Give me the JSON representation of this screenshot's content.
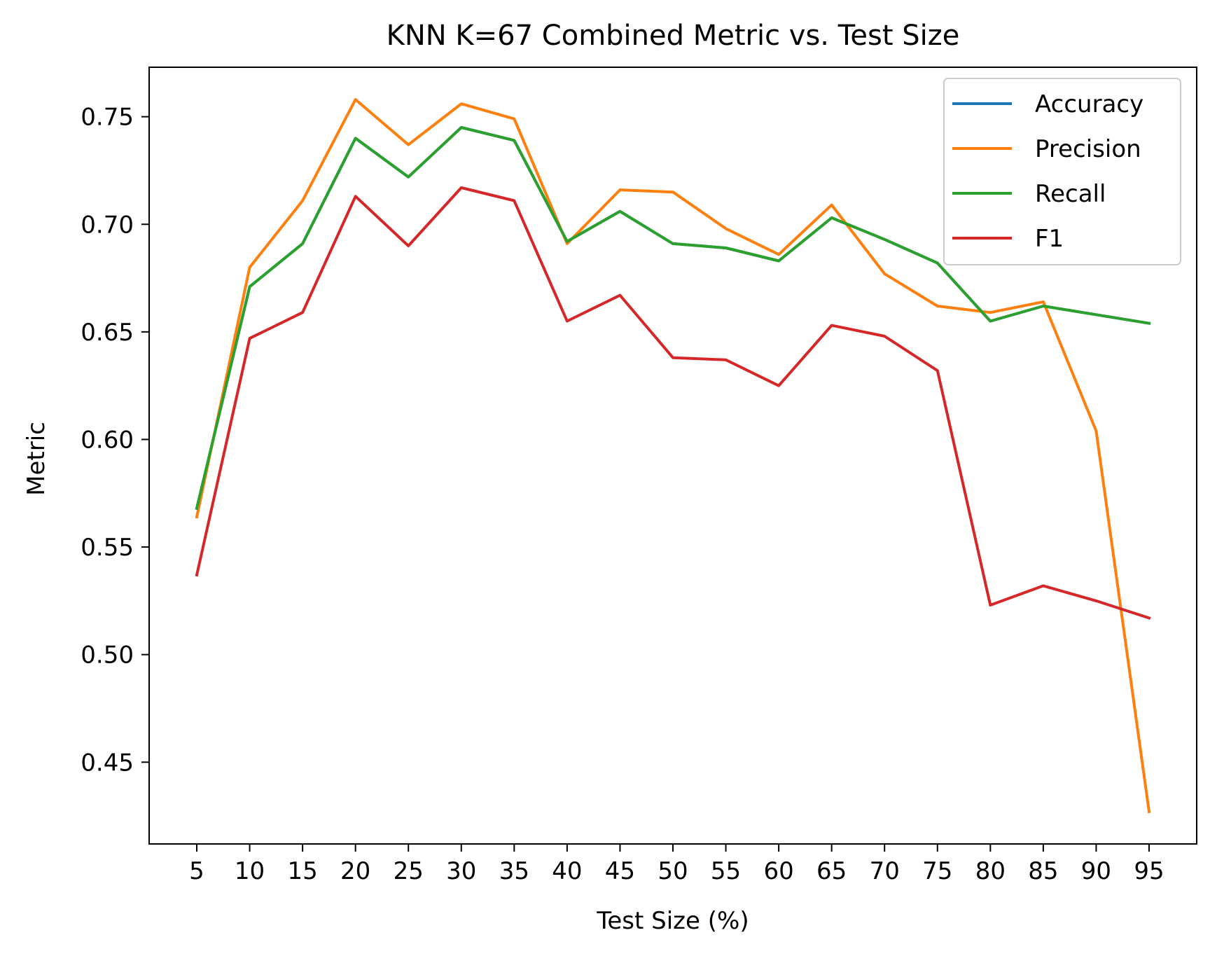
{
  "chart_data": {
    "type": "line",
    "title": "KNN K=67  Combined Metric vs. Test Size",
    "xlabel": "Test Size (%)",
    "ylabel": "Metric",
    "x": [
      5,
      10,
      15,
      20,
      25,
      30,
      35,
      40,
      45,
      50,
      55,
      60,
      65,
      70,
      75,
      80,
      85,
      90,
      95
    ],
    "x_tick_labels": [
      "5",
      "10",
      "15",
      "20",
      "25",
      "30",
      "35",
      "40",
      "45",
      "50",
      "55",
      "60",
      "65",
      "70",
      "75",
      "80",
      "85",
      "90",
      "95"
    ],
    "y_ticks": [
      0.45,
      0.5,
      0.55,
      0.6,
      0.65,
      0.7,
      0.75
    ],
    "y_tick_labels": [
      "0.45",
      "0.50",
      "0.55",
      "0.60",
      "0.65",
      "0.70",
      "0.75"
    ],
    "xlim": [
      0.5,
      99.5
    ],
    "ylim": [
      0.412,
      0.773
    ],
    "grid": false,
    "legend_position": "top-right",
    "series": [
      {
        "name": "Accuracy",
        "color": "#1f77b4",
        "values": [
          0.568,
          0.671,
          0.691,
          0.74,
          0.722,
          0.745,
          0.739,
          0.692,
          0.706,
          0.691,
          0.689,
          0.683,
          0.703,
          0.693,
          0.682,
          0.655,
          0.662,
          0.658,
          0.654
        ]
      },
      {
        "name": "Precision",
        "color": "#ff7f0e",
        "values": [
          0.564,
          0.68,
          0.711,
          0.758,
          0.737,
          0.756,
          0.749,
          0.691,
          0.716,
          0.715,
          0.698,
          0.686,
          0.709,
          0.677,
          0.662,
          0.659,
          0.664,
          0.604,
          0.427
        ]
      },
      {
        "name": "Recall",
        "color": "#2ca02c",
        "values": [
          0.568,
          0.671,
          0.691,
          0.74,
          0.722,
          0.745,
          0.739,
          0.692,
          0.706,
          0.691,
          0.689,
          0.683,
          0.703,
          0.693,
          0.682,
          0.655,
          0.662,
          0.658,
          0.654
        ]
      },
      {
        "name": "F1",
        "color": "#d62728",
        "values": [
          0.537,
          0.647,
          0.659,
          0.713,
          0.69,
          0.717,
          0.711,
          0.655,
          0.667,
          0.638,
          0.637,
          0.625,
          0.653,
          0.648,
          0.632,
          0.523,
          0.532,
          0.525,
          0.517
        ]
      }
    ]
  }
}
